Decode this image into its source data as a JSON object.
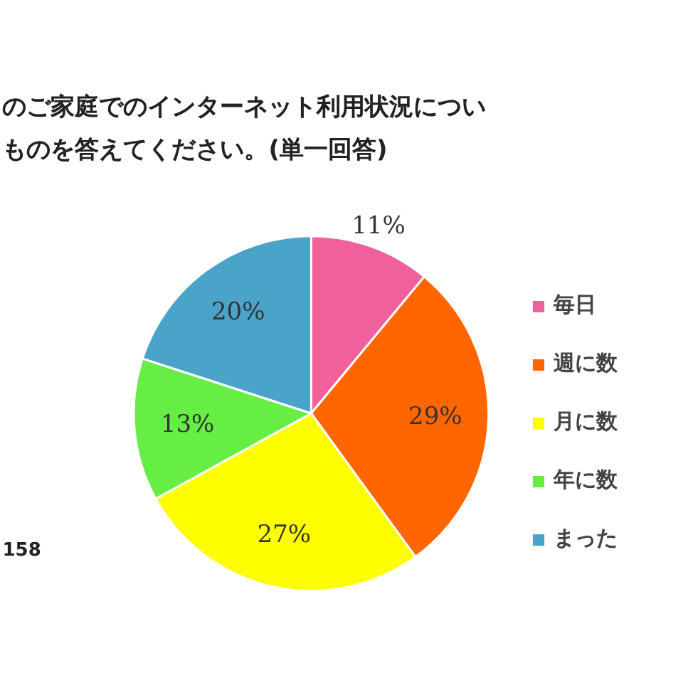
{
  "chart_data": {
    "type": "pie",
    "title": "のご家庭でのインターネット利用状況につい",
    "subtitle": "ものを答えてください。(単一回答)",
    "categories": [
      "毎日",
      "週に数",
      "月に数",
      "年に数",
      "まった"
    ],
    "values": [
      11,
      29,
      27,
      13,
      20
    ],
    "colors": [
      "#f0609a",
      "#ff6600",
      "#ffff00",
      "#66ee44",
      "#4aa3c8"
    ],
    "value_labels": [
      "11%",
      "29%",
      "27%",
      "13%",
      "20%"
    ],
    "legend": "right",
    "annotations": [
      "158"
    ]
  }
}
